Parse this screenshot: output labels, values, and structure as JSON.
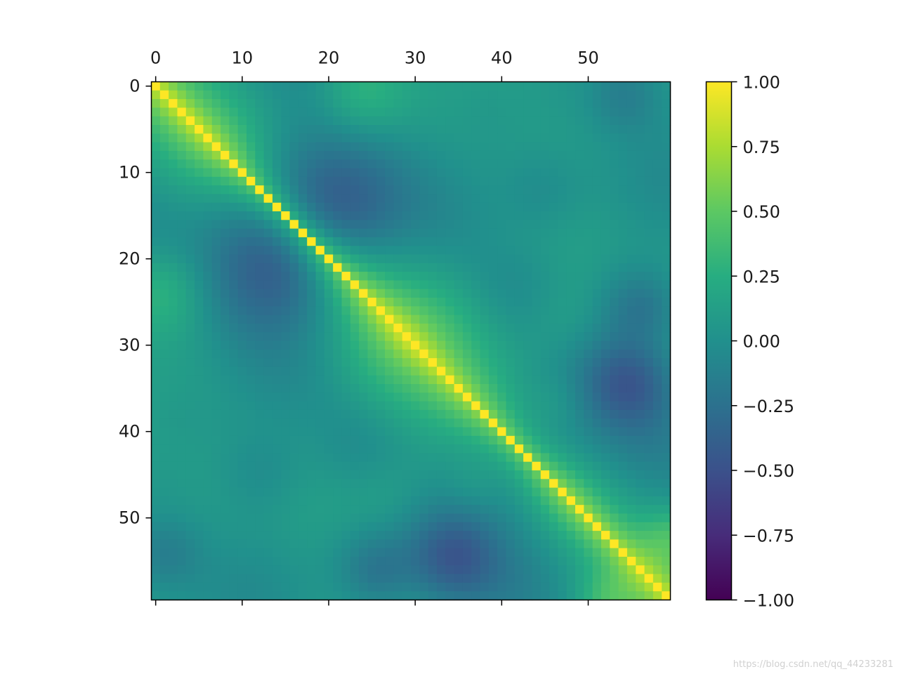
{
  "chart_data": {
    "type": "heatmap",
    "rows": 60,
    "cols": 60,
    "colormap": "viridis",
    "xaxis_position": "top",
    "x_ticks": [
      0,
      10,
      20,
      30,
      40,
      50
    ],
    "y_ticks": [
      0,
      10,
      20,
      30,
      40,
      50
    ],
    "x_tick_labels": [
      "0",
      "10",
      "20",
      "30",
      "40",
      "50"
    ],
    "y_tick_labels": [
      "0",
      "10",
      "20",
      "30",
      "40",
      "50"
    ],
    "diagonal_value": 1.0,
    "value_range": [
      -1.0,
      1.0
    ],
    "colorbar": {
      "position": "right",
      "ticks": [
        1.0,
        0.75,
        0.5,
        0.25,
        0.0,
        -0.25,
        -0.5,
        -0.75,
        -1.0
      ],
      "tick_labels": [
        "1.00",
        "0.75",
        "0.50",
        "0.25",
        "0.00",
        "−0.25",
        "−0.50",
        "−0.75",
        "−1.00"
      ]
    },
    "grid": false
  },
  "watermark": "https://blog.csdn.net/qq_44233281"
}
